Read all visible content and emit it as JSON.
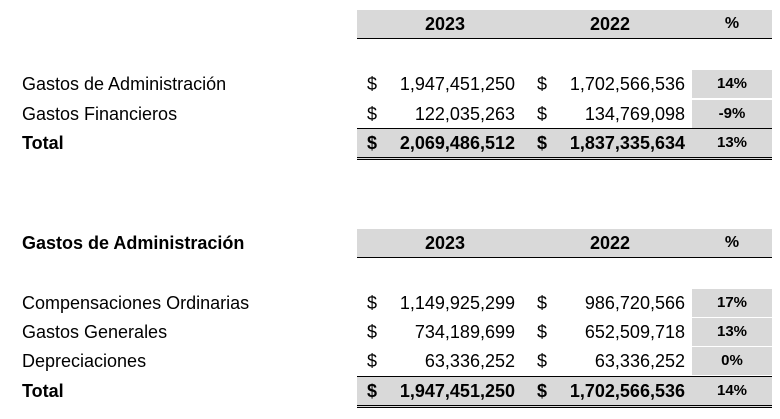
{
  "table1": {
    "headers": {
      "y2023": "2023",
      "y2022": "2022",
      "pct": "%"
    },
    "rows": [
      {
        "label": "Gastos de Administración",
        "cur1": "$",
        "v2023": "1,947,451,250",
        "cur2": "$",
        "v2022": "1,702,566,536",
        "pct": "14%"
      },
      {
        "label": "Gastos Financieros",
        "cur1": "$",
        "v2023": "122,035,263",
        "cur2": "$",
        "v2022": "134,769,098",
        "pct": "-9%"
      }
    ],
    "total": {
      "label": "Total",
      "cur1": "$",
      "v2023": "2,069,486,512",
      "cur2": "$",
      "v2022": "1,837,335,634",
      "pct": "13%"
    }
  },
  "table2": {
    "title": "Gastos de Administración",
    "headers": {
      "y2023": "2023",
      "y2022": "2022",
      "pct": "%"
    },
    "rows": [
      {
        "label": "Compensaciones Ordinarias",
        "cur1": "$",
        "v2023": "1,149,925,299",
        "cur2": "$",
        "v2022": "986,720,566",
        "pct": "17%"
      },
      {
        "label": "Gastos Generales",
        "cur1": "$",
        "v2023": "734,189,699",
        "cur2": "$",
        "v2022": "652,509,718",
        "pct": "13%"
      },
      {
        "label": "Depreciaciones",
        "cur1": "$",
        "v2023": "63,336,252",
        "cur2": "$",
        "v2022": "63,336,252",
        "pct": "0%"
      }
    ],
    "total": {
      "label": "Total",
      "cur1": "$",
      "v2023": "1,947,451,250",
      "cur2": "$",
      "v2022": "1,702,566,536",
      "pct": "14%"
    }
  }
}
